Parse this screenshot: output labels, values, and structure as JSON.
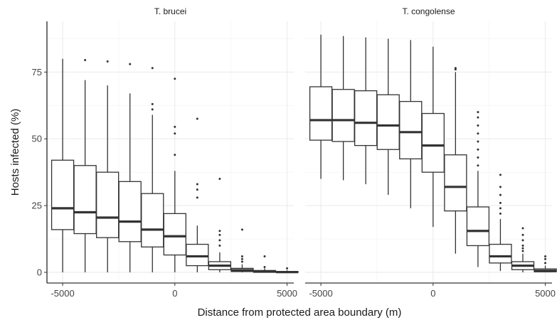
{
  "chart_data": {
    "type": "box",
    "xlabel": "Distance from protected area boundary (m)",
    "ylabel": "Hosts infected (%)",
    "xlim": [
      -5700,
      5300
    ],
    "ylim": [
      -4,
      94
    ],
    "xticks": [
      -5000,
      0,
      5000
    ],
    "yticks": [
      0,
      25,
      50,
      75
    ],
    "grid": true,
    "panels": [
      {
        "name": "T. brucei",
        "boxes": [
          {
            "x": -5000,
            "min": 0,
            "q1": 16,
            "median": 24,
            "q3": 42,
            "max": 80,
            "outliers": []
          },
          {
            "x": -4000,
            "min": 0,
            "q1": 14.5,
            "median": 22.5,
            "q3": 40,
            "max": 72,
            "outliers": [
              79.5
            ]
          },
          {
            "x": -3000,
            "min": 0,
            "q1": 13,
            "median": 20.5,
            "q3": 37.5,
            "max": 70,
            "outliers": [
              79
            ]
          },
          {
            "x": -2000,
            "min": 0,
            "q1": 11.5,
            "median": 19,
            "q3": 34,
            "max": 67,
            "outliers": [
              78
            ]
          },
          {
            "x": -1000,
            "min": 0,
            "q1": 9.5,
            "median": 16,
            "q3": 29.5,
            "max": 59,
            "outliers": [
              61,
              63,
              76.5
            ]
          },
          {
            "x": 0,
            "min": 0,
            "q1": 6.5,
            "median": 13.5,
            "q3": 22,
            "max": 38,
            "outliers": [
              44,
              52,
              54.5,
              72.5
            ]
          },
          {
            "x": 1000,
            "min": 0,
            "q1": 2.5,
            "median": 6,
            "q3": 10.5,
            "max": 17.5,
            "outliers": [
              28,
              31,
              33,
              57.5
            ]
          },
          {
            "x": 2000,
            "min": 0,
            "q1": 1,
            "median": 2.5,
            "q3": 4,
            "max": 7.5,
            "outliers": [
              10,
              12,
              14,
              15.5,
              35
            ]
          },
          {
            "x": 3000,
            "min": 0,
            "q1": 0.3,
            "median": 0.8,
            "q3": 1.5,
            "max": 3,
            "outliers": [
              4,
              5,
              6,
              16
            ]
          },
          {
            "x": 4000,
            "min": 0,
            "q1": 0,
            "median": 0.3,
            "q3": 0.7,
            "max": 1.5,
            "outliers": [
              2,
              6
            ]
          },
          {
            "x": 5000,
            "min": 0,
            "q1": 0,
            "median": 0.1,
            "q3": 0.3,
            "max": 0.8,
            "outliers": [
              1.5
            ]
          }
        ]
      },
      {
        "name": "T. congolense",
        "boxes": [
          {
            "x": -5000,
            "min": 35,
            "q1": 49.5,
            "median": 57,
            "q3": 69.5,
            "max": 89,
            "outliers": []
          },
          {
            "x": -4000,
            "min": 34.5,
            "q1": 49,
            "median": 57,
            "q3": 68.5,
            "max": 88.5,
            "outliers": []
          },
          {
            "x": -3000,
            "min": 33,
            "q1": 47.5,
            "median": 56,
            "q3": 68,
            "max": 88,
            "outliers": []
          },
          {
            "x": -2000,
            "min": 29,
            "q1": 46,
            "median": 55,
            "q3": 66.5,
            "max": 87.5,
            "outliers": []
          },
          {
            "x": -1000,
            "min": 24,
            "q1": 42.5,
            "median": 52.5,
            "q3": 64,
            "max": 87,
            "outliers": []
          },
          {
            "x": 0,
            "min": 17,
            "q1": 37.5,
            "median": 47.5,
            "q3": 59.5,
            "max": 84.5,
            "outliers": []
          },
          {
            "x": 1000,
            "min": 7,
            "q1": 23,
            "median": 32,
            "q3": 44,
            "max": 75,
            "outliers": [
              76,
              76.5
            ]
          },
          {
            "x": 2000,
            "min": 2,
            "q1": 10,
            "median": 15.5,
            "q3": 24.5,
            "max": 38,
            "outliers": [
              40,
              43,
              46,
              49,
              52,
              55,
              58,
              60
            ]
          },
          {
            "x": 3000,
            "min": 0.5,
            "q1": 3.5,
            "median": 6,
            "q3": 10.5,
            "max": 20,
            "outliers": [
              22,
              24,
              26,
              29,
              32,
              36.5
            ]
          },
          {
            "x": 4000,
            "min": 0,
            "q1": 1,
            "median": 2.5,
            "q3": 4,
            "max": 7,
            "outliers": [
              8,
              9,
              10,
              12,
              14,
              16.5
            ]
          },
          {
            "x": 5000,
            "min": 0,
            "q1": 0.2,
            "median": 0.6,
            "q3": 1.3,
            "max": 2.5,
            "outliers": [
              3.5,
              5,
              6
            ]
          }
        ]
      }
    ]
  }
}
